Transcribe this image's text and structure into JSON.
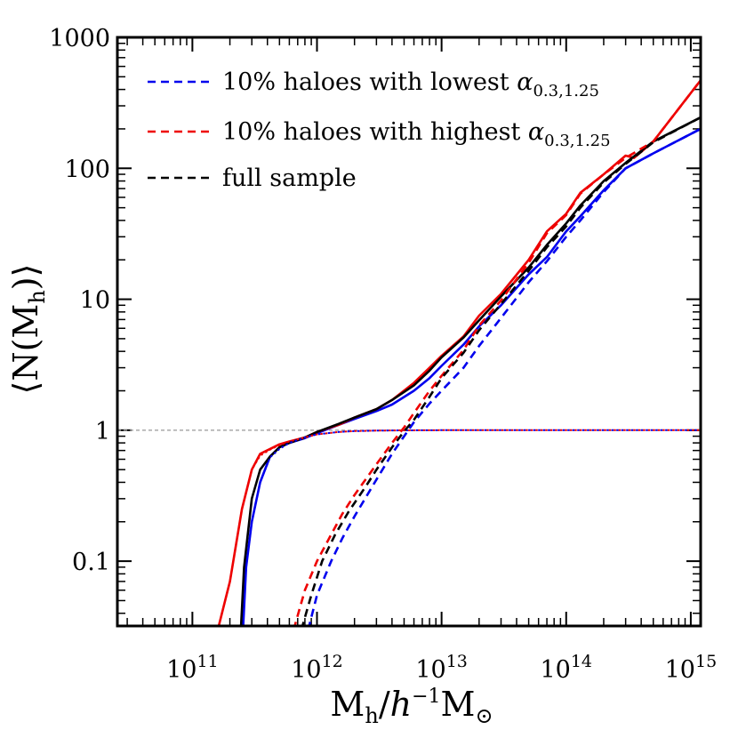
{
  "chart_data": {
    "type": "line",
    "xscale": "log",
    "yscale": "log",
    "xlim": [
      25000000000.0,
      1200000000000000.0
    ],
    "ylim": [
      0.032,
      1000
    ],
    "xlabel": {
      "main": "M",
      "sub": "h",
      "slash": "/",
      "h": "h",
      "exp": "−1",
      "m": "M",
      "sun": "⊙"
    },
    "ylabel": {
      "open": "⟨N(M",
      "sub": "h",
      "close": ")⟩"
    },
    "x_tick_labels": [
      {
        "base": "10",
        "exp": "11",
        "value": 100000000000.0
      },
      {
        "base": "10",
        "exp": "12",
        "value": 1000000000000.0
      },
      {
        "base": "10",
        "exp": "13",
        "value": 10000000000000.0
      },
      {
        "base": "10",
        "exp": "14",
        "value": 100000000000000.0
      },
      {
        "base": "10",
        "exp": "15",
        "value": 1000000000000000.0
      }
    ],
    "y_tick_labels": [
      {
        "label": "0.1",
        "value": 0.1
      },
      {
        "label": "1",
        "value": 1
      },
      {
        "label": "10",
        "value": 10
      },
      {
        "label": "100",
        "value": 100
      },
      {
        "label": "1000",
        "value": 1000
      }
    ],
    "reference_line": {
      "y": 1,
      "color": "#999999",
      "style": "dashed"
    },
    "legend": {
      "placement": "top-left",
      "entries": [
        {
          "text": "10% haloes with lowest ",
          "symbol": "α",
          "sub": "0.3,1.25",
          "color": "#0000ee",
          "style": "dashed"
        },
        {
          "text": "10% haloes with highest ",
          "symbol": "α",
          "sub": "0.3,1.25",
          "color": "#ee0000",
          "style": "dashed"
        },
        {
          "text": "full sample",
          "symbol": "",
          "sub": "",
          "color": "#000000",
          "style": "dashed"
        }
      ]
    },
    "series": [
      {
        "name": "lowest total",
        "color": "#0000ee",
        "style": "solid",
        "x": [
          255000000000.0,
          270000000000.0,
          300000000000.0,
          350000000000.0,
          420000000000.0,
          500000000000.0,
          600000000000.0,
          800000000000.0,
          1000000000000.0,
          1500000000000.0,
          2000000000000.0,
          3000000000000.0,
          4000000000000.0,
          6000000000000.0,
          8000000000000.0,
          10000000000000.0,
          15000000000000.0,
          20000000000000.0,
          30000000000000.0,
          50000000000000.0,
          70000000000000.0,
          100000000000000.0,
          130000000000000.0,
          200000000000000.0,
          300000000000000.0,
          500000000000000.0,
          1200000000000000.0
        ],
        "y": [
          0.03,
          0.09,
          0.2,
          0.4,
          0.63,
          0.74,
          0.8,
          0.87,
          0.95,
          1.1,
          1.22,
          1.4,
          1.57,
          2.0,
          2.5,
          3.1,
          4.5,
          6.2,
          9.0,
          15.5,
          21,
          33,
          43,
          68,
          100,
          130,
          200
        ]
      },
      {
        "name": "highest total",
        "color": "#ee0000",
        "style": "solid",
        "x": [
          160000000000.0,
          200000000000.0,
          250000000000.0,
          300000000000.0,
          350000000000.0,
          420000000000.0,
          500000000000.0,
          600000000000.0,
          800000000000.0,
          1000000000000.0,
          1500000000000.0,
          2000000000000.0,
          3000000000000.0,
          4000000000000.0,
          6000000000000.0,
          8000000000000.0,
          10000000000000.0,
          15000000000000.0,
          20000000000000.0,
          30000000000000.0,
          50000000000000.0,
          70000000000000.0,
          100000000000000.0,
          130000000000000.0,
          200000000000000.0,
          300000000000000.0,
          350000000000000.0,
          500000000000000.0,
          1200000000000000.0
        ],
        "y": [
          0.03,
          0.07,
          0.25,
          0.5,
          0.66,
          0.72,
          0.78,
          0.82,
          0.88,
          0.97,
          1.1,
          1.25,
          1.45,
          1.7,
          2.3,
          3.0,
          3.7,
          5.2,
          7.5,
          11,
          20,
          33,
          45,
          65,
          90,
          125,
          120,
          160,
          470
        ]
      },
      {
        "name": "full total",
        "color": "#000000",
        "style": "solid",
        "x": [
          245000000000.0,
          260000000000.0,
          300000000000.0,
          350000000000.0,
          420000000000.0,
          500000000000.0,
          600000000000.0,
          800000000000.0,
          1000000000000.0,
          1500000000000.0,
          2000000000000.0,
          3000000000000.0,
          4000000000000.0,
          6000000000000.0,
          8000000000000.0,
          10000000000000.0,
          15000000000000.0,
          20000000000000.0,
          30000000000000.0,
          50000000000000.0,
          70000000000000.0,
          100000000000000.0,
          130000000000000.0,
          200000000000000.0,
          300000000000000.0,
          500000000000000.0,
          1200000000000000.0
        ],
        "y": [
          0.03,
          0.09,
          0.3,
          0.5,
          0.63,
          0.74,
          0.8,
          0.88,
          0.97,
          1.12,
          1.25,
          1.45,
          1.7,
          2.2,
          2.85,
          3.6,
          5.1,
          6.9,
          10.5,
          17.5,
          26,
          38,
          52,
          80,
          110,
          160,
          245
        ]
      },
      {
        "name": "lowest central",
        "color": "#0000ee",
        "style": "dotted",
        "x": [
          255000000000.0,
          270000000000.0,
          300000000000.0,
          350000000000.0,
          420000000000.0,
          500000000000.0,
          600000000000.0,
          800000000000.0,
          1000000000000.0,
          1500000000000.0,
          2000000000000.0,
          3000000000000.0,
          5000000000000.0,
          10000000000000.0,
          100000000000000.0,
          1200000000000000.0
        ],
        "y": [
          0.03,
          0.09,
          0.2,
          0.4,
          0.62,
          0.72,
          0.8,
          0.88,
          0.93,
          0.97,
          0.985,
          0.993,
          0.997,
          1,
          1,
          1
        ]
      },
      {
        "name": "highest central",
        "color": "#ee0000",
        "style": "dotted",
        "x": [
          160000000000.0,
          200000000000.0,
          250000000000.0,
          300000000000.0,
          350000000000.0,
          420000000000.0,
          500000000000.0,
          600000000000.0,
          800000000000.0,
          1000000000000.0,
          1500000000000.0,
          2000000000000.0,
          3000000000000.0,
          5000000000000.0,
          10000000000000.0,
          100000000000000.0,
          1200000000000000.0
        ],
        "y": [
          0.03,
          0.07,
          0.25,
          0.5,
          0.64,
          0.71,
          0.77,
          0.82,
          0.88,
          0.93,
          0.97,
          0.985,
          0.993,
          0.997,
          1,
          1,
          1
        ]
      },
      {
        "name": "lowest satellite",
        "color": "#0000ee",
        "style": "dashed",
        "x": [
          850000000000.0,
          1000000000000.0,
          1300000000000.0,
          1600000000000.0,
          2000000000000.0,
          3000000000000.0,
          4000000000000.0,
          5000000000000.0,
          6000000000000.0,
          8000000000000.0,
          10000000000000.0,
          15000000000000.0,
          20000000000000.0,
          30000000000000.0,
          50000000000000.0,
          70000000000000.0,
          100000000000000.0,
          130000000000000.0,
          200000000000000.0,
          300000000000000.0,
          500000000000000.0,
          1200000000000000.0
        ],
        "y": [
          0.03,
          0.055,
          0.1,
          0.15,
          0.22,
          0.42,
          0.66,
          0.9,
          1.15,
          1.6,
          2.0,
          3.0,
          4.4,
          7.2,
          13.5,
          19.5,
          30,
          40,
          66,
          100,
          130,
          200
        ]
      },
      {
        "name": "highest satellite",
        "color": "#ee0000",
        "style": "dashed",
        "x": [
          650000000000.0,
          800000000000.0,
          1000000000000.0,
          1300000000000.0,
          1600000000000.0,
          2000000000000.0,
          3000000000000.0,
          4000000000000.0,
          5000000000000.0,
          6000000000000.0,
          8000000000000.0,
          10000000000000.0,
          15000000000000.0,
          20000000000000.0,
          30000000000000.0,
          50000000000000.0,
          70000000000000.0,
          100000000000000.0,
          130000000000000.0,
          200000000000000.0,
          300000000000000.0,
          500000000000000.0,
          1200000000000000.0
        ],
        "y": [
          0.03,
          0.06,
          0.1,
          0.16,
          0.23,
          0.32,
          0.55,
          0.8,
          1.05,
          1.35,
          2.0,
          2.6,
          4.1,
          6.3,
          9.8,
          19,
          32,
          44,
          64,
          90,
          120,
          160,
          470
        ]
      },
      {
        "name": "full satellite",
        "color": "#000000",
        "style": "dashed",
        "x": [
          750000000000.0,
          900000000000.0,
          1100000000000.0,
          1400000000000.0,
          1800000000000.0,
          2500000000000.0,
          3000000000000.0,
          4000000000000.0,
          5000000000000.0,
          6000000000000.0,
          8000000000000.0,
          10000000000000.0,
          15000000000000.0,
          20000000000000.0,
          30000000000000.0,
          50000000000000.0,
          70000000000000.0,
          100000000000000.0,
          130000000000000.0,
          200000000000000.0,
          300000000000000.0,
          500000000000000.0,
          1200000000000000.0
        ],
        "y": [
          0.03,
          0.055,
          0.1,
          0.16,
          0.24,
          0.38,
          0.5,
          0.74,
          0.98,
          1.2,
          1.8,
          2.5,
          3.9,
          5.8,
          9.2,
          16.5,
          25,
          36,
          50,
          78,
          108,
          158,
          245
        ]
      }
    ]
  }
}
